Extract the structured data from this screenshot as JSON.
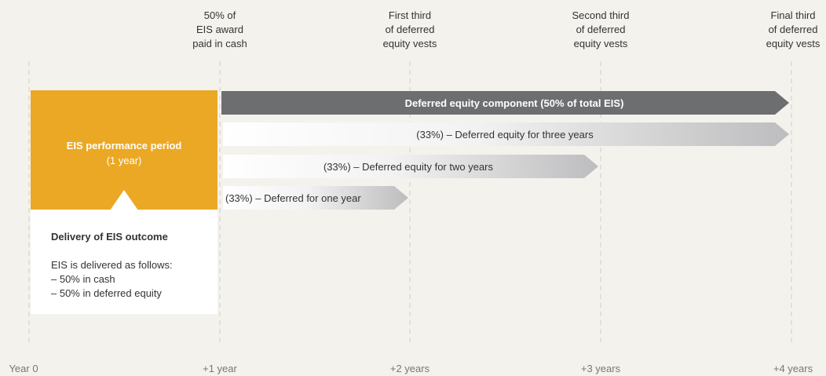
{
  "milestones": [
    {
      "top": [],
      "bottom": "Year 0"
    },
    {
      "top": [
        "50% of",
        "EIS award",
        "paid in cash"
      ],
      "bottom": "+1 year"
    },
    {
      "top": [
        "First third",
        "of deferred",
        "equity vests"
      ],
      "bottom": "+2 years"
    },
    {
      "top": [
        "Second third",
        "of deferred",
        "equity vests"
      ],
      "bottom": "+3 years"
    },
    {
      "top": [
        "Final third",
        "of deferred",
        "equity vests"
      ],
      "bottom": "+4 years"
    }
  ],
  "performance": {
    "title": "EIS performance period",
    "subtitle": "(1 year)"
  },
  "delivery": {
    "title": "Delivery of EIS outcome",
    "lines": [
      "EIS is delivered as follows:",
      "– 50% in cash",
      "– 50% in deferred equity"
    ]
  },
  "arrows": [
    {
      "label": "Deferred equity component (50% of total EIS)"
    },
    {
      "label": "(33%) – Deferred equity for three years"
    },
    {
      "label": "(33%) – Deferred equity for two years"
    },
    {
      "label": "(33%) – Deferred for one year"
    }
  ]
}
